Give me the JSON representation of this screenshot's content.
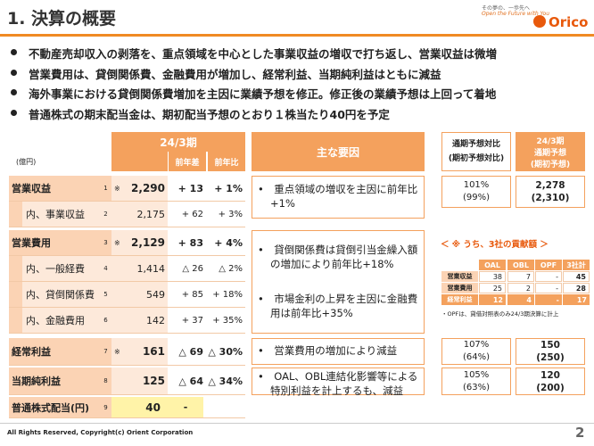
{
  "header": {
    "title": "1. 決算の概要",
    "tagline_jp": "その夢の、一歩先へ",
    "tagline_en": "Open the Future with You",
    "logo": "Orico"
  },
  "bullets": [
    "不動産売却収入の剥落を、重点領域を中心とした事業収益の増収で打ち返し、営業収益は微増",
    "営業費用は、貸倒関係費、金融費用が増加し、経常利益、当期純利益はともに減益",
    "海外事業における貸倒関係費増加を主因に業績予想を修正。修正後の業績予想は上回って着地",
    "普通株式の期末配当金は、期初配当予想のとおり１株当たり40円を予定"
  ],
  "table": {
    "unit": "(億円)",
    "period": "24/3期",
    "columns": [
      "前年差",
      "前年比"
    ],
    "rows": [
      {
        "label": "営業収益",
        "no": "1",
        "mark": "※",
        "value": "2,290",
        "diff": "+ 13",
        "ratio": "+ 1%"
      },
      {
        "label": "内、事業収益",
        "no": "2",
        "value": "2,175",
        "diff": "+ 62",
        "ratio": "+ 3%"
      },
      {
        "label": "営業費用",
        "no": "3",
        "mark": "※",
        "value": "2,129",
        "diff": "+ 83",
        "ratio": "+ 4%"
      },
      {
        "label": "内、一般経費",
        "no": "4",
        "value": "1,414",
        "diff": "△ 26",
        "ratio": "△ 2%"
      },
      {
        "label": "内、貸倒関係費",
        "no": "5",
        "value": "549",
        "diff": "+ 85",
        "ratio": "+ 18%"
      },
      {
        "label": "内、金融費用",
        "no": "6",
        "value": "142",
        "diff": "+ 37",
        "ratio": "+ 35%"
      },
      {
        "label": "経常利益",
        "no": "7",
        "mark": "※",
        "value": "161",
        "diff": "△ 69",
        "ratio": "△ 30%"
      },
      {
        "label": "当期純利益",
        "no": "8",
        "value": "125",
        "diff": "△ 64",
        "ratio": "△ 34%"
      },
      {
        "label": "普通株式配当(円)",
        "no": "9",
        "value": "40",
        "diff": "-"
      }
    ]
  },
  "factors": {
    "header": "主な要因",
    "items": [
      [
        "重点領域の増収を主因に前年比+1%"
      ],
      [
        "貸倒関係費は貸倒引当金繰入額の増加により前年比+18%",
        "市場金利の上昇を主因に金融費用は前年比+35%"
      ],
      [
        "営業費用の増加により減益"
      ],
      [
        "OAL、OBL連結化影響等による特別利益を計上するも、減益"
      ]
    ]
  },
  "forecast": {
    "ratio_header": "通期予想対比",
    "ratio_sub": "(期初予想対比)",
    "value_header": "24/3期",
    "value_sub": "通期予想",
    "value_sub2": "(期初予想)",
    "rows": [
      {
        "ratio": "101%",
        "ratio_initial": "(99%)",
        "value": "2,278",
        "value_initial": "(2,310)"
      },
      {
        "ratio": "107%",
        "ratio_initial": "(64%)",
        "value": "150",
        "value_initial": "(250)"
      },
      {
        "ratio": "105%",
        "ratio_initial": "(63%)",
        "value": "120",
        "value_initial": "(200)"
      }
    ]
  },
  "contribution": {
    "title": "＜ ※ うち、3社の貢献額 ＞",
    "columns": [
      "OAL",
      "OBL",
      "OPF",
      "3社計"
    ],
    "rows": [
      {
        "label": "営業収益",
        "values": [
          "38",
          "7",
          "-",
          "45"
        ]
      },
      {
        "label": "営業費用",
        "values": [
          "25",
          "2",
          "-",
          "28"
        ]
      },
      {
        "label": "経常利益",
        "values": [
          "12",
          "4",
          "-",
          "17"
        ]
      }
    ],
    "note": "・OPFは、貸借対照表のみ24/3期決算に計上"
  },
  "footer": {
    "copyright": "All Rights Reserved, Copyright(c) Orient Corporation",
    "page": "2"
  }
}
